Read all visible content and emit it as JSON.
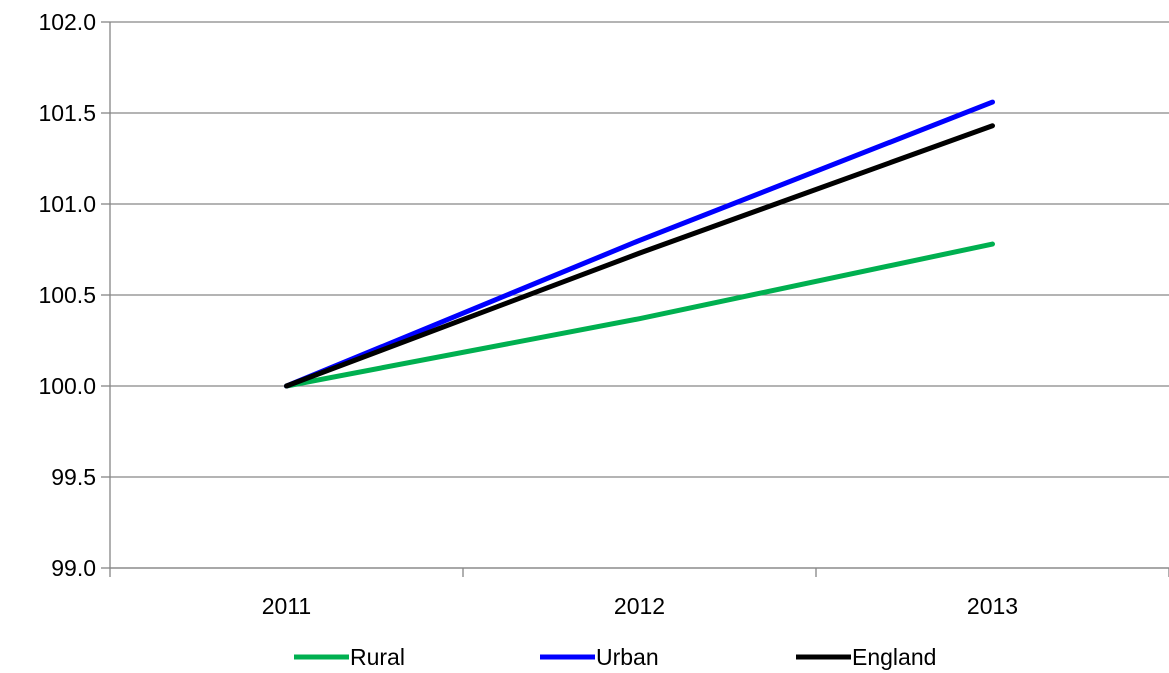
{
  "chart_data": {
    "type": "line",
    "categories": [
      "2011",
      "2012",
      "2013"
    ],
    "series": [
      {
        "name": "Rural",
        "color": "#00b050",
        "values": [
          100.0,
          100.37,
          100.78
        ]
      },
      {
        "name": "Urban",
        "color": "#0000ff",
        "values": [
          100.0,
          100.8,
          101.56
        ]
      },
      {
        "name": "England",
        "color": "#000000",
        "values": [
          100.0,
          100.73,
          101.43
        ]
      }
    ],
    "y_ticks": [
      "99.0",
      "99.5",
      "100.0",
      "100.5",
      "101.0",
      "101.5",
      "102.0"
    ],
    "ylim": [
      99.0,
      102.0
    ],
    "grid": true,
    "legend": "bottom"
  }
}
